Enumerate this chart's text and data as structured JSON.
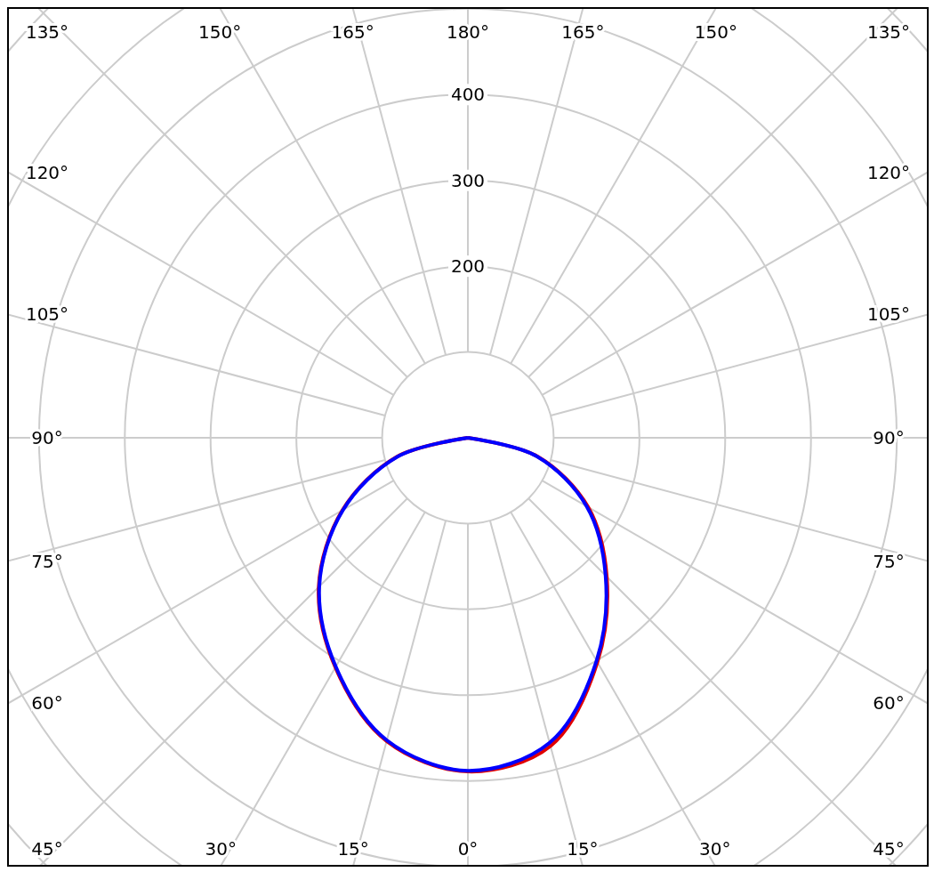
{
  "chart_data": {
    "type": "radar",
    "categories": [
      "180°",
      "165°",
      "150°",
      "135°",
      "120°",
      "105°",
      "90°",
      "75°",
      "60°",
      "45°",
      "30°",
      "15°",
      "0°",
      "15°",
      "30°",
      "45°",
      "60°",
      "75°",
      "90°",
      "105°",
      "120°",
      "135°",
      "150°",
      "165°"
    ],
    "series": [
      {
        "color": "#e00000",
        "values": [
          0,
          0,
          0,
          0,
          0,
          0,
          0,
          84,
          162,
          229,
          302,
          372,
          389,
          366,
          309,
          246,
          169,
          86,
          0,
          0,
          0,
          0,
          0,
          0
        ]
      },
      {
        "color": "#0000ff",
        "values": [
          0,
          0,
          0,
          0,
          0,
          0,
          0,
          83,
          160,
          227,
          300,
          368,
          388,
          365,
          308,
          245,
          168,
          85,
          0,
          0,
          0,
          0,
          0,
          0
        ]
      }
    ],
    "ylim": [
      0,
      700
    ],
    "yticks": [
      200,
      300,
      400
    ],
    "grid": true
  }
}
